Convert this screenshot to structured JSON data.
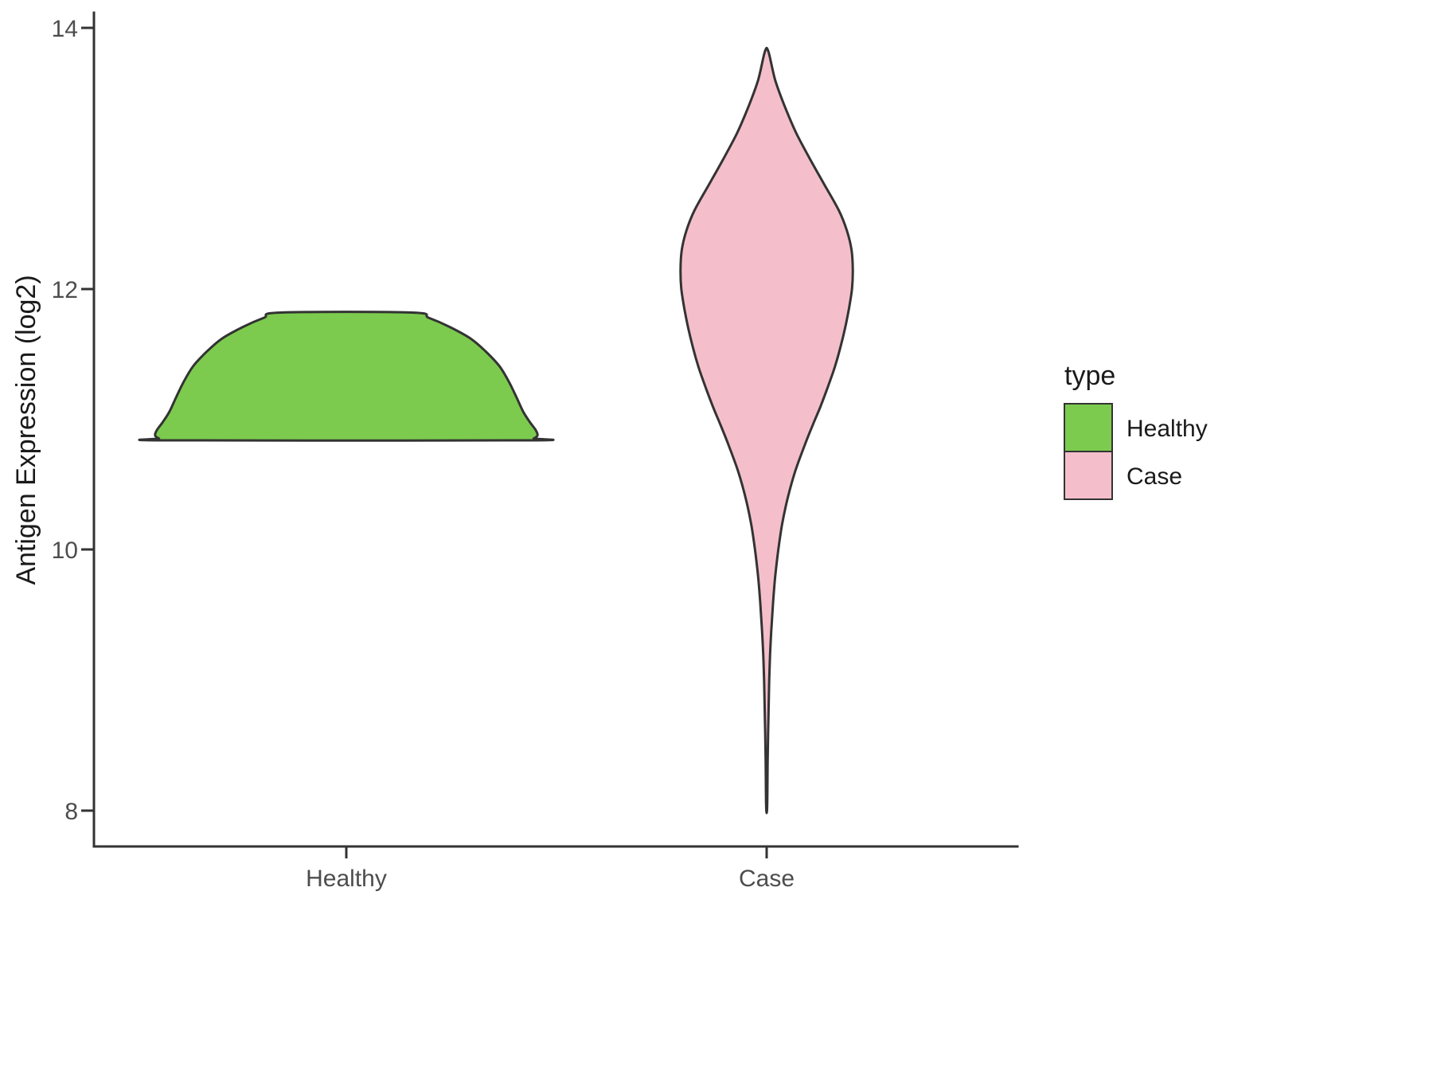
{
  "chart_data": {
    "type": "violin",
    "title": "",
    "xlabel": "",
    "ylabel": "Antigen Expression (log2)",
    "categories": [
      "Healthy",
      "Case"
    ],
    "y_ticks": [
      8,
      10,
      12,
      14
    ],
    "ylim": [
      7.75,
      14.1
    ],
    "grid": false,
    "background": "#FFFFFF",
    "axis": {
      "line_color": "#333333",
      "tick_label_color": "#4D4D4D",
      "title_color": "#1A1A1A"
    },
    "legend": {
      "title": "type",
      "position": "right",
      "entries": [
        {
          "label": "Healthy",
          "fill": "#7CCB4E"
        },
        {
          "label": "Case",
          "fill": "#F4BFCB"
        }
      ]
    },
    "series": [
      {
        "name": "Healthy",
        "category": "Healthy",
        "fill": "#7CCB4E",
        "outline": "#333333",
        "y_range": [
          10.84,
          11.82
        ],
        "max_halfwidth": 0.455,
        "profile": [
          [
            11.82,
            0.34
          ],
          [
            11.78,
            0.43
          ],
          [
            11.71,
            0.54
          ],
          [
            11.62,
            0.65
          ],
          [
            11.52,
            0.73
          ],
          [
            11.41,
            0.8
          ],
          [
            11.29,
            0.85
          ],
          [
            11.17,
            0.89
          ],
          [
            11.06,
            0.925
          ],
          [
            10.98,
            0.96
          ],
          [
            10.92,
            0.99
          ],
          [
            10.88,
            1.0
          ],
          [
            10.855,
            0.98
          ],
          [
            10.84,
            0.93
          ]
        ]
      },
      {
        "name": "Case",
        "category": "Case",
        "fill": "#F4BFCB",
        "outline": "#333333",
        "y_range": [
          8.03,
          13.82
        ],
        "max_halfwidth": 0.205,
        "profile": [
          [
            13.82,
            0.02
          ],
          [
            13.6,
            0.1
          ],
          [
            13.4,
            0.21
          ],
          [
            13.2,
            0.34
          ],
          [
            13.0,
            0.5
          ],
          [
            12.8,
            0.67
          ],
          [
            12.6,
            0.84
          ],
          [
            12.45,
            0.93
          ],
          [
            12.3,
            0.985
          ],
          [
            12.15,
            1.0
          ],
          [
            12.0,
            0.99
          ],
          [
            11.85,
            0.955
          ],
          [
            11.7,
            0.91
          ],
          [
            11.55,
            0.855
          ],
          [
            11.4,
            0.79
          ],
          [
            11.25,
            0.71
          ],
          [
            11.1,
            0.625
          ],
          [
            10.95,
            0.53
          ],
          [
            10.8,
            0.44
          ],
          [
            10.6,
            0.33
          ],
          [
            10.4,
            0.245
          ],
          [
            10.2,
            0.18
          ],
          [
            10.0,
            0.135
          ],
          [
            9.8,
            0.1
          ],
          [
            9.6,
            0.075
          ],
          [
            9.4,
            0.055
          ],
          [
            9.2,
            0.04
          ],
          [
            9.0,
            0.03
          ],
          [
            8.7,
            0.02
          ],
          [
            8.4,
            0.012
          ],
          [
            8.03,
            0.006
          ]
        ]
      }
    ]
  }
}
